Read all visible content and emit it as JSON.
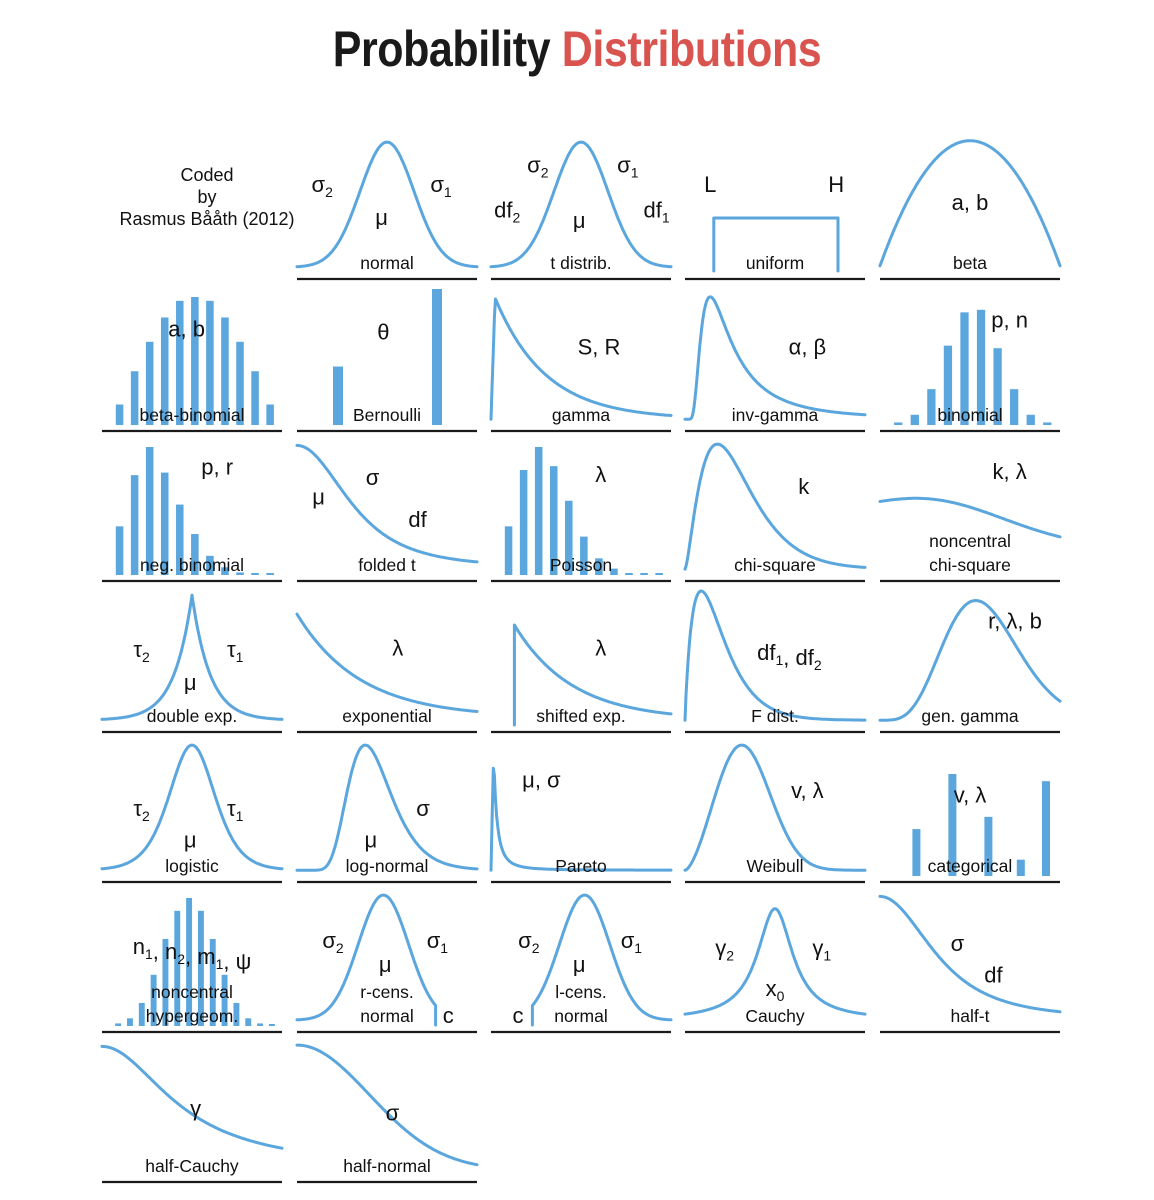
{
  "title": {
    "part1": "Probability",
    "part2": "Distributions"
  },
  "credit": {
    "line1": "Coded",
    "line2": "by",
    "line3": "Rasmus Bååth (2012)"
  },
  "colors": {
    "curve": "#5aa6dd",
    "title_accent": "#d9534f",
    "text": "#1a1a1a"
  },
  "distributions": [
    {
      "id": "normal",
      "label": [
        "normal"
      ],
      "params": [
        [
          "σ2",
          0.14,
          0.38
        ],
        [
          "σ1",
          0.8,
          0.38
        ],
        [
          "μ",
          0.47,
          0.6
        ]
      ],
      "curve_type": "normal"
    },
    {
      "id": "t",
      "label": [
        "t distrib."
      ],
      "params": [
        [
          "σ2",
          0.26,
          0.25
        ],
        [
          "σ1",
          0.76,
          0.25
        ],
        [
          "df2",
          0.09,
          0.55
        ],
        [
          "μ",
          0.49,
          0.62
        ],
        [
          "df1",
          0.92,
          0.55
        ]
      ],
      "curve_type": "normal"
    },
    {
      "id": "uniform",
      "label": [
        "uniform"
      ],
      "params": [
        [
          "L",
          0.14,
          0.38
        ],
        [
          "H",
          0.84,
          0.38
        ]
      ],
      "curve_type": "uniform"
    },
    {
      "id": "beta",
      "label": [
        "beta"
      ],
      "params": [
        [
          "a, b",
          0.5,
          0.5
        ]
      ],
      "curve_type": "beta"
    },
    {
      "id": "beta-binomial",
      "label": [
        "beta-binomial"
      ],
      "params": [
        [
          "a, b",
          0.47,
          0.33
        ]
      ],
      "curve_type": "bars",
      "bars": [
        0.16,
        0.42,
        0.65,
        0.84,
        0.97,
        1.0,
        0.97,
        0.84,
        0.65,
        0.42,
        0.16
      ]
    },
    {
      "id": "bernoulli",
      "label": [
        "Bernoulli"
      ],
      "params": [
        [
          "θ",
          0.48,
          0.35
        ]
      ],
      "curve_type": "bernoulli",
      "bars": [
        0.43,
        1.0
      ]
    },
    {
      "id": "gamma",
      "label": [
        "gamma"
      ],
      "params": [
        [
          "S, R",
          0.6,
          0.45
        ]
      ],
      "curve_type": "gamma"
    },
    {
      "id": "inv-gamma",
      "label": [
        "inv-gamma"
      ],
      "params": [
        [
          "α, β",
          0.68,
          0.45
        ]
      ],
      "curve_type": "invgamma"
    },
    {
      "id": "binomial",
      "label": [
        "binomial"
      ],
      "params": [
        [
          "p, n",
          0.72,
          0.27
        ]
      ],
      "curve_type": "bars",
      "bars": [
        0.02,
        0.08,
        0.28,
        0.62,
        0.88,
        0.9,
        0.6,
        0.28,
        0.08,
        0.02
      ]
    },
    {
      "id": "neg-binomial",
      "label": [
        "neg. binomial"
      ],
      "params": [
        [
          "p, r",
          0.64,
          0.25
        ]
      ],
      "curve_type": "bars",
      "bars": [
        0.38,
        0.78,
        1.0,
        0.8,
        0.55,
        0.32,
        0.15,
        0.06,
        0.02,
        0.01,
        0.005
      ]
    },
    {
      "id": "folded-t",
      "label": [
        "folded t"
      ],
      "params": [
        [
          "μ",
          0.12,
          0.45
        ],
        [
          "σ",
          0.42,
          0.32
        ],
        [
          "df",
          0.67,
          0.6
        ]
      ],
      "curve_type": "foldedt"
    },
    {
      "id": "poisson",
      "label": [
        "Poisson"
      ],
      "params": [
        [
          "λ",
          0.61,
          0.3
        ]
      ],
      "curve_type": "bars",
      "bars": [
        0.38,
        0.82,
        1.0,
        0.85,
        0.58,
        0.3,
        0.13,
        0.05,
        0.015,
        0.005,
        0.002
      ]
    },
    {
      "id": "chi-square",
      "label": [
        "chi-square"
      ],
      "params": [
        [
          "k",
          0.66,
          0.38
        ]
      ],
      "curve_type": "chisq"
    },
    {
      "id": "noncentral-chi-square",
      "label": [
        "noncentral",
        "chi-square"
      ],
      "params": [
        [
          "k, λ",
          0.72,
          0.28
        ]
      ],
      "curve_type": "ncchisq"
    },
    {
      "id": "double-exp",
      "label": [
        "double exp."
      ],
      "params": [
        [
          "τ2",
          0.22,
          0.46
        ],
        [
          "τ1",
          0.74,
          0.46
        ],
        [
          "μ",
          0.49,
          0.68
        ]
      ],
      "curve_type": "laplace"
    },
    {
      "id": "exponential",
      "label": [
        "exponential"
      ],
      "params": [
        [
          "λ",
          0.56,
          0.45
        ]
      ],
      "curve_type": "exponential"
    },
    {
      "id": "shifted-exp",
      "label": [
        "shifted exp."
      ],
      "params": [
        [
          "λ",
          0.61,
          0.45
        ]
      ],
      "curve_type": "shiftedexp"
    },
    {
      "id": "f-dist",
      "label": [
        "F dist."
      ],
      "params": [
        [
          "df1, df2",
          0.58,
          0.48
        ]
      ],
      "curve_type": "fdist"
    },
    {
      "id": "gen-gamma",
      "label": [
        "gen. gamma"
      ],
      "params": [
        [
          "r, λ, b",
          0.75,
          0.27
        ]
      ],
      "curve_type": "gengamma"
    },
    {
      "id": "logistic",
      "label": [
        "logistic"
      ],
      "params": [
        [
          "τ2",
          0.22,
          0.52
        ],
        [
          "τ1",
          0.74,
          0.52
        ],
        [
          "μ",
          0.49,
          0.73
        ]
      ],
      "curve_type": "logistic"
    },
    {
      "id": "log-normal",
      "label": [
        "log-normal"
      ],
      "params": [
        [
          "σ",
          0.7,
          0.52
        ],
        [
          "μ",
          0.41,
          0.73
        ]
      ],
      "curve_type": "lognormal"
    },
    {
      "id": "pareto",
      "label": [
        "Pareto"
      ],
      "params": [
        [
          "μ, σ",
          0.28,
          0.33
        ]
      ],
      "curve_type": "pareto"
    },
    {
      "id": "weibull",
      "label": [
        "Weibull"
      ],
      "params": [
        [
          "v, λ",
          0.68,
          0.4
        ]
      ],
      "curve_type": "weibull"
    },
    {
      "id": "categorical",
      "label": [
        "categorical"
      ],
      "params": [
        [
          "v, λ",
          0.5,
          0.43
        ]
      ],
      "curve_type": "categorical",
      "bars": [
        0.46,
        1.0,
        0.58,
        0.16,
        0.93
      ]
    },
    {
      "id": "noncentral-hypergeom",
      "label": [
        "noncentral",
        "hypergeom."
      ],
      "params": [
        [
          "n1, n2, m1, ψ",
          0.5,
          0.44
        ]
      ],
      "curve_type": "bars",
      "bars": [
        0.02,
        0.06,
        0.18,
        0.4,
        0.68,
        0.9,
        1.0,
        0.9,
        0.68,
        0.4,
        0.18,
        0.06,
        0.02,
        0.005
      ]
    },
    {
      "id": "r-cens-normal",
      "label": [
        "r-cens.",
        "normal"
      ],
      "params": [
        [
          "σ2",
          0.2,
          0.4
        ],
        [
          "σ1",
          0.78,
          0.4
        ],
        [
          "μ",
          0.49,
          0.56
        ],
        [
          "c",
          0.84,
          0.9
        ]
      ],
      "curve_type": "rcens"
    },
    {
      "id": "l-cens-normal",
      "label": [
        "l-cens.",
        "normal"
      ],
      "params": [
        [
          "σ2",
          0.21,
          0.4
        ],
        [
          "σ1",
          0.78,
          0.4
        ],
        [
          "μ",
          0.49,
          0.56
        ],
        [
          "c",
          0.15,
          0.9
        ]
      ],
      "curve_type": "lcens"
    },
    {
      "id": "cauchy",
      "label": [
        "Cauchy"
      ],
      "params": [
        [
          "γ2",
          0.22,
          0.45
        ],
        [
          "γ1",
          0.76,
          0.45
        ],
        [
          "x0",
          0.5,
          0.72
        ]
      ],
      "curve_type": "cauchy"
    },
    {
      "id": "half-t",
      "label": [
        "half-t"
      ],
      "params": [
        [
          "σ",
          0.43,
          0.42
        ],
        [
          "df",
          0.63,
          0.63
        ]
      ],
      "curve_type": "halft"
    },
    {
      "id": "half-cauchy",
      "label": [
        "half-Cauchy"
      ],
      "params": [
        [
          "γ",
          0.52,
          0.52
        ]
      ],
      "curve_type": "halfcauchy"
    },
    {
      "id": "half-normal",
      "label": [
        "half-normal"
      ],
      "params": [
        [
          "σ",
          0.53,
          0.55
        ]
      ],
      "curve_type": "halfnormal"
    }
  ]
}
